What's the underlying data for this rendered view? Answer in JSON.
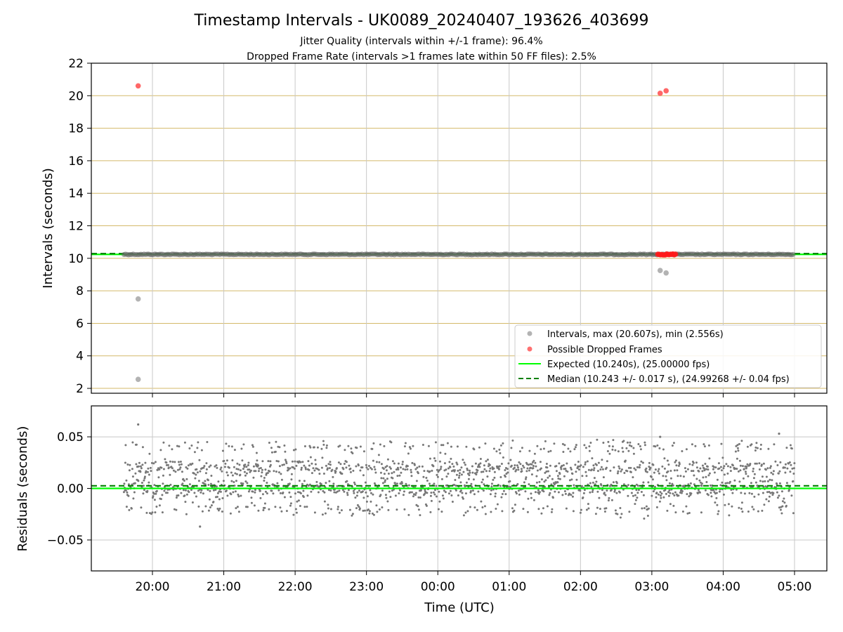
{
  "chart_data": [
    {
      "type": "scatter",
      "title": "Timestamp Intervals - UK0089_20240407_193626_403699",
      "subtitle_lines": [
        "Jitter Quality (intervals within +/-1 frame): 96.4%",
        "Dropped Frame Rate (intervals >1 frames late within 50 FF files): 2.5%"
      ],
      "xlabel": "",
      "ylabel": "Intervals (seconds)",
      "ylim": [
        1.7,
        22
      ],
      "yticks": [
        2,
        4,
        6,
        8,
        10,
        12,
        14,
        16,
        18,
        20,
        22
      ],
      "x_time_range": [
        "19:36",
        "05:00"
      ],
      "grid": true,
      "legend_position": "bottom-right",
      "series": [
        {
          "name": "Intervals, max (20.607s), min (2.556s)",
          "color": "#999999",
          "band": {
            "x_start": "19:36",
            "x_end": "05:00",
            "y": 10.24
          },
          "outliers": [
            {
              "x": "19:48",
              "y": 7.5
            },
            {
              "x": "19:48",
              "y": 2.556
            },
            {
              "x": "03:07",
              "y": 9.25
            },
            {
              "x": "03:12",
              "y": 9.1
            }
          ]
        },
        {
          "name": "Possible Dropped Frames",
          "color": "#ff4c4c",
          "points": [
            {
              "x": "19:48",
              "y": 20.607
            },
            {
              "x": "03:07",
              "y": 20.15
            },
            {
              "x": "03:12",
              "y": 20.3
            }
          ],
          "cluster": {
            "x_start": "03:05",
            "x_end": "03:20",
            "y": 10.24
          }
        },
        {
          "name": "Expected (10.240s), (25.00000 fps)",
          "color": "#00ff00",
          "style": "solid",
          "y": 10.24
        },
        {
          "name": "Median (10.243 +/- 0.017 s), (24.99268 +/- 0.04 fps)",
          "color": "#008000",
          "style": "dashed",
          "y": 10.243
        }
      ],
      "horizontal_grid_color": "#d4b96a"
    },
    {
      "type": "scatter",
      "xlabel": "Time (UTC)",
      "ylabel": "Residuals (seconds)",
      "ylim": [
        -0.08,
        0.08
      ],
      "yticks": [
        -0.05,
        0.0,
        0.05
      ],
      "ytick_labels": [
        "−0.05",
        "0.00",
        "0.05"
      ],
      "xticks": [
        "20:00",
        "21:00",
        "22:00",
        "23:00",
        "00:00",
        "01:00",
        "02:00",
        "03:00",
        "04:00",
        "05:00"
      ],
      "grid": true,
      "series": [
        {
          "color": "#777777",
          "residual_bands": [
            {
              "center": 0.0,
              "spread": 0.005,
              "weight": 0.45
            },
            {
              "center": 0.02,
              "spread": 0.004,
              "weight": 0.35
            },
            {
              "center": -0.02,
              "spread": 0.004,
              "weight": 0.1
            },
            {
              "center": 0.04,
              "spread": 0.003,
              "weight": 0.1
            }
          ],
          "outliers": [
            {
              "x": "19:48",
              "y": 0.062
            },
            {
              "x": "20:40",
              "y": -0.037
            },
            {
              "x": "04:47",
              "y": 0.053
            },
            {
              "x": "03:07",
              "y": 0.05
            }
          ]
        },
        {
          "color": "#00ff00",
          "style": "solid",
          "y": 0.0
        },
        {
          "color": "#008000",
          "style": "dashed",
          "y": 0.0025
        }
      ]
    }
  ]
}
